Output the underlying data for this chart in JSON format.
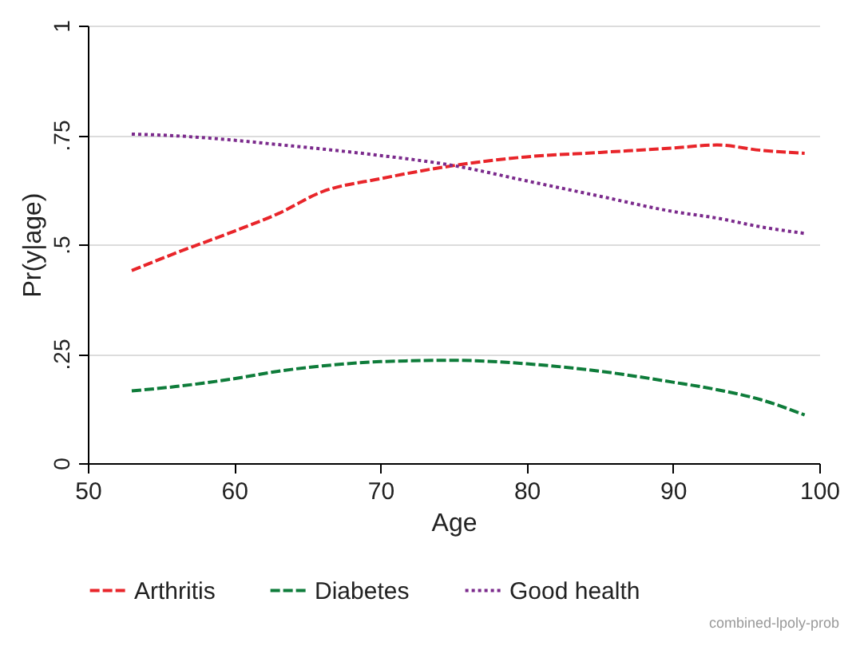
{
  "chart_data": {
    "type": "line",
    "xlabel": "Age",
    "ylabel": "Pr(y|age)",
    "x": [
      53,
      56,
      60,
      63,
      66,
      70,
      75,
      80,
      85,
      90,
      93,
      96,
      99
    ],
    "series": [
      {
        "name": "Arthritis",
        "color": "#e8252a",
        "line_style": "dashed",
        "values": [
          0.44,
          0.48,
          0.53,
          0.57,
          0.62,
          0.65,
          0.68,
          0.7,
          0.71,
          0.72,
          0.727,
          0.715,
          0.708
        ]
      },
      {
        "name": "Diabetes",
        "color": "#0e7c3a",
        "line_style": "dashed",
        "values": [
          0.165,
          0.175,
          0.193,
          0.21,
          0.222,
          0.232,
          0.235,
          0.227,
          0.21,
          0.185,
          0.168,
          0.145,
          0.11
        ]
      },
      {
        "name": "Good health",
        "color": "#7b2a8c",
        "line_style": "dotted",
        "values": [
          0.752,
          0.748,
          0.738,
          0.728,
          0.718,
          0.703,
          0.68,
          0.645,
          0.61,
          0.575,
          0.56,
          0.54,
          0.525
        ]
      }
    ],
    "xlim": [
      50,
      100
    ],
    "xticks": [
      50,
      60,
      70,
      80,
      90,
      100
    ],
    "ylim": [
      0,
      1
    ],
    "yticks": [
      {
        "value": 0,
        "label": "0"
      },
      {
        "value": 0.25,
        "label": ".25"
      },
      {
        "value": 0.5,
        "label": ".5"
      },
      {
        "value": 0.75,
        "label": ".75"
      },
      {
        "value": 1,
        "label": "1"
      }
    ],
    "grid": "y",
    "legend": "bottom",
    "annotations": [
      "combined-lpoly-prob"
    ]
  }
}
